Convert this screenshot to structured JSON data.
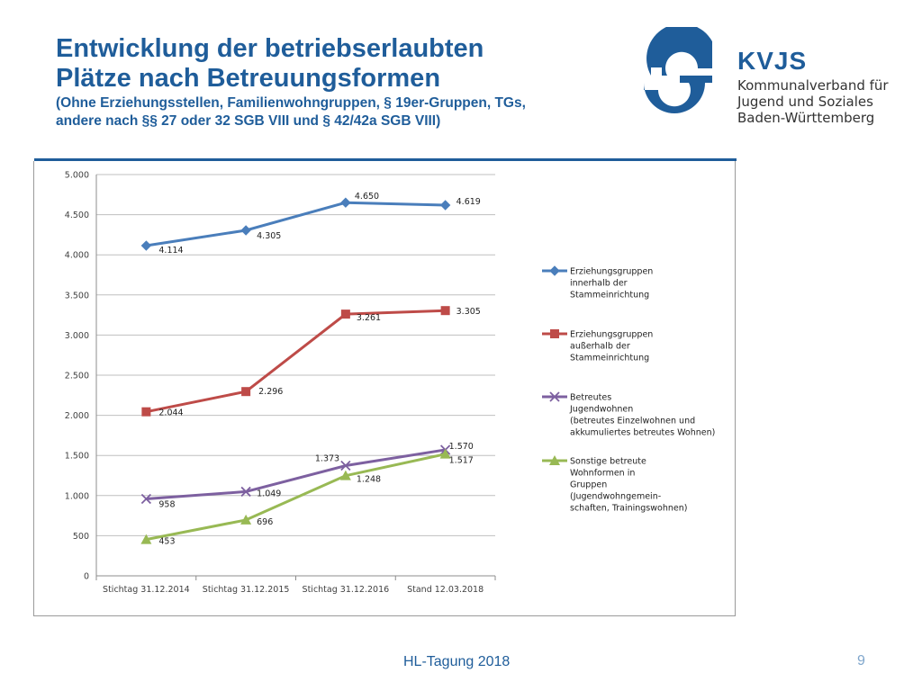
{
  "slide": {
    "title_line1": "Entwicklung der betriebserlaubten",
    "title_line2": "Plätze nach Betreuungsformen",
    "subtitle_line1": "(Ohne Erziehungsstellen, Familienwohngruppen, § 19er-Gruppen, TGs,",
    "subtitle_line2": "andere nach §§ 27 oder 32 SGB VIII und § 42/42a SGB VIII)",
    "footer": "HL-Tagung 2018",
    "page_number": "9"
  },
  "logo": {
    "brand": "KVJS",
    "org_line1": "Kommunalverband für",
    "org_line2": "Jugend und Soziales",
    "org_line3": "Baden-Württemberg",
    "color": "#1f5d9a"
  },
  "chart_data": {
    "type": "line",
    "categories": [
      "Stichtag 31.12.2014",
      "Stichtag 31.12.2015",
      "Stichtag 31.12.2016",
      "Stand 12.03.2018"
    ],
    "ylim": [
      0,
      5000
    ],
    "yticks": [
      0,
      500,
      1000,
      1500,
      2000,
      2500,
      3000,
      3500,
      4000,
      4500,
      5000
    ],
    "ytick_labels": [
      "0",
      "500",
      "1.000",
      "1.500",
      "2.000",
      "2.500",
      "3.000",
      "3.500",
      "4.000",
      "4.500",
      "5.000"
    ],
    "grid": "horizontal",
    "legend_position": "right",
    "series": [
      {
        "name": "Erziehungsgruppen innerhalb der Stammeinrichtung",
        "legend_lines": [
          "Erziehungsgruppen",
          "innerhalb der",
          "Stammeinrichtung"
        ],
        "values": [
          4114,
          4305,
          4650,
          4619
        ],
        "labels": [
          "4.114",
          "4.305",
          "4.650",
          "4.619"
        ],
        "color": "#4a7ebb",
        "marker": "diamond"
      },
      {
        "name": "Erziehungsgruppen außerhalb der Stammeinrichtung",
        "legend_lines": [
          "Erziehungsgruppen",
          "außerhalb der",
          "Stammeinrichtung"
        ],
        "values": [
          2044,
          2296,
          3261,
          3305
        ],
        "labels": [
          "2.044",
          "2.296",
          "3.261",
          "3.305"
        ],
        "color": "#be4b48",
        "marker": "square"
      },
      {
        "name": "Betreutes Jugendwohnen (betreutes Einzelwohnen und akkumuliertes betreutes Wohnen)",
        "legend_lines": [
          "Betreutes",
          "Jugendwohnen",
          "(betreutes Einzelwohnen und",
          "akkumuliertes betreutes Wohnen)"
        ],
        "values": [
          958,
          1049,
          1373,
          1570
        ],
        "labels": [
          "958",
          "1.049",
          "1.373",
          "1.570"
        ],
        "color": "#7d60a0",
        "marker": "x"
      },
      {
        "name": "Sonstige betreute Wohnformen in Gruppen (Jugendwohngemeinschaften, Trainingswohnen)",
        "legend_lines": [
          "Sonstige betreute",
          "Wohnformen in",
          "Gruppen",
          "(Jugendwohngemein-",
          "schaften, Trainingswohnen)"
        ],
        "values": [
          453,
          696,
          1248,
          1517
        ],
        "labels": [
          "453",
          "696",
          "1.248",
          "1.517"
        ],
        "color": "#98b954",
        "marker": "triangle"
      }
    ]
  }
}
